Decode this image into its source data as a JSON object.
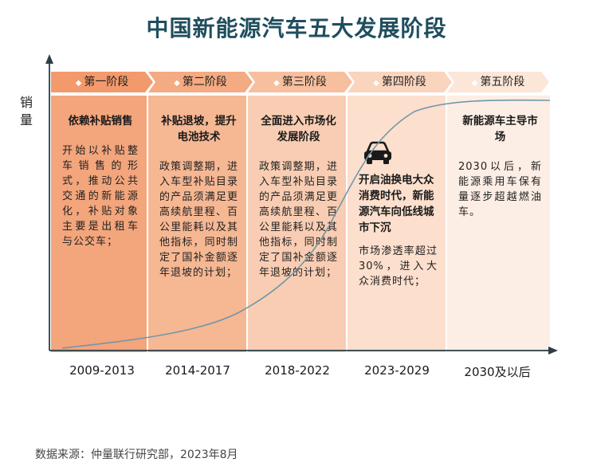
{
  "title": "中国新能源汽车五大发展阶段",
  "y_axis_label": "销量",
  "colors": {
    "col1": "#f3a57c",
    "col2": "#f6b793",
    "col3": "#f9cdb3",
    "col4": "#fcdfcd",
    "col5": "#fdeee5",
    "bar1": "#f29a6c",
    "bar2": "#f4aa82",
    "bar3": "#f7bf9e",
    "bar4": "#fad4bd",
    "bar5": "#fce6d8",
    "curve": "#6f97a9",
    "axis": "#2c3e46"
  },
  "stages": [
    {
      "label": "第一阶段",
      "heading": "依赖补贴销售",
      "body": "开始以补贴整车销售的形式，推动公共交通的新能源化，补贴对象主要是出租车与公交车；",
      "period": "2009-2013"
    },
    {
      "label": "第二阶段",
      "heading": "补贴退坡，提升电池技术",
      "body": "政策调整期，进入车型补贴目录的产品须满足更高续航里程、百公里能耗以及其他指标，同时制定了国补金额逐年退坡的计划；",
      "period": "2014-2017"
    },
    {
      "label": "第三阶段",
      "heading": "全面进入市场化发展阶段",
      "body": "政策调整期，进入车型补贴目录的产品须满足更高续航里程、百公里能耗以及其他指标，同时制定了国补金额逐年退坡的计划；",
      "period": "2018-2022"
    },
    {
      "label": "第四阶段",
      "icon": "car-icon",
      "heading": "开启油换电大众消费时代，新能源汽车向低线城市下沉",
      "body": "市场渗透率超过30%，进入大众消费时代；",
      "period": "2023-2029"
    },
    {
      "label": "第五阶段",
      "heading": "新能源车主导市场",
      "body": "2030以后，新能源乘用车保有量逐步超越燃油车。",
      "period": "2030及以后"
    }
  ],
  "source": "数据来源：仲量联行研究部，2023年8月"
}
